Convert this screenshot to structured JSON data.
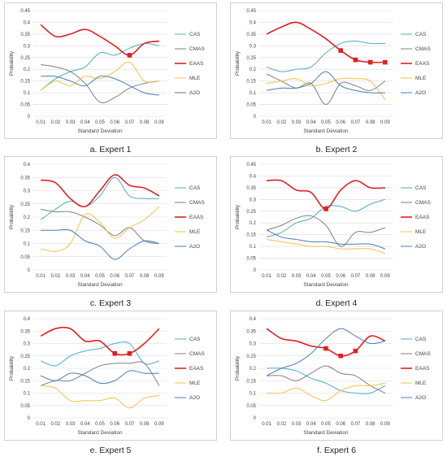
{
  "series_colors": {
    "CAS": "#4bacc6",
    "CMAS": "#7f7f7f",
    "EAAS": "#e02020",
    "MLE": "#f5c242",
    "A2O": "#4a7bb5"
  },
  "chart_data": [
    {
      "type": "line",
      "caption": "a. Expert 1",
      "title": "",
      "xlabel": "Standard Deviation",
      "ylabel": "Probability",
      "x": [
        "0.01",
        "0.02",
        "0.03",
        "0.04",
        "0.05",
        "0.06",
        "0.07",
        "0.08",
        "0.09"
      ],
      "yticks": [
        "0",
        "0.05",
        "0.1",
        "0.15",
        "0.2",
        "0.25",
        "0.3",
        "0.35",
        "0.4",
        "0.45"
      ],
      "ylim": [
        0,
        0.45
      ],
      "grid": true,
      "legend": "right",
      "markers": {
        "EAAS": [
          6
        ]
      },
      "series": [
        {
          "name": "CAS",
          "values": [
            0.11,
            0.16,
            0.19,
            0.21,
            0.27,
            0.26,
            0.29,
            0.31,
            0.3
          ]
        },
        {
          "name": "CMAS",
          "values": [
            0.22,
            0.21,
            0.19,
            0.14,
            0.06,
            0.08,
            0.12,
            0.14,
            0.15
          ]
        },
        {
          "name": "EAAS",
          "values": [
            0.39,
            0.34,
            0.35,
            0.37,
            0.34,
            0.3,
            0.26,
            0.31,
            0.32
          ]
        },
        {
          "name": "MLE",
          "values": [
            0.11,
            0.15,
            0.13,
            0.17,
            0.16,
            0.19,
            0.23,
            0.15,
            0.15
          ]
        },
        {
          "name": "A2O",
          "values": [
            0.17,
            0.17,
            0.15,
            0.13,
            0.17,
            0.16,
            0.13,
            0.1,
            0.09
          ]
        }
      ]
    },
    {
      "type": "line",
      "caption": "b. Expert 2",
      "title": "",
      "xlabel": "Standard Deviation",
      "ylabel": "Probability",
      "x": [
        "0.01",
        "0.02",
        "0.03",
        "0.04",
        "0.05",
        "0.06",
        "0.07",
        "0.08",
        "0.09"
      ],
      "yticks": [
        "0",
        "0.05",
        "0.1",
        "0.15",
        "0.2",
        "0.25",
        "0.3",
        "0.35",
        "0.4",
        "0.45"
      ],
      "ylim": [
        0,
        0.45
      ],
      "grid": true,
      "legend": "right",
      "markers": {
        "EAAS": [
          5,
          6,
          7,
          8
        ]
      },
      "series": [
        {
          "name": "CAS",
          "values": [
            0.21,
            0.19,
            0.2,
            0.21,
            0.27,
            0.31,
            0.32,
            0.31,
            0.31
          ]
        },
        {
          "name": "CMAS",
          "values": [
            0.18,
            0.15,
            0.12,
            0.14,
            0.05,
            0.14,
            0.13,
            0.11,
            0.15
          ]
        },
        {
          "name": "EAAS",
          "values": [
            0.35,
            0.38,
            0.4,
            0.37,
            0.33,
            0.28,
            0.24,
            0.23,
            0.23
          ]
        },
        {
          "name": "MLE",
          "values": [
            0.14,
            0.15,
            0.16,
            0.13,
            0.14,
            0.16,
            0.16,
            0.15,
            0.07
          ]
        },
        {
          "name": "A2O",
          "values": [
            0.11,
            0.12,
            0.12,
            0.14,
            0.19,
            0.13,
            0.11,
            0.1,
            0.1
          ]
        }
      ]
    },
    {
      "type": "line",
      "caption": "c. Expert 3",
      "title": "",
      "xlabel": "Standard Deviation",
      "ylabel": "Probability",
      "x": [
        "0.01",
        "0.02",
        "0.03",
        "0.04",
        "0.05",
        "0.06",
        "0.07",
        "0.08",
        "0.09"
      ],
      "yticks": [
        "0",
        "0.05",
        "0.1",
        "0.15",
        "0.2",
        "0.25",
        "0.3",
        "0.35",
        "0.4"
      ],
      "ylim": [
        0,
        0.4
      ],
      "grid": true,
      "legend": "right",
      "markers": {},
      "series": [
        {
          "name": "CAS",
          "values": [
            0.19,
            0.23,
            0.26,
            0.24,
            0.28,
            0.35,
            0.28,
            0.27,
            0.27
          ]
        },
        {
          "name": "CMAS",
          "values": [
            0.23,
            0.22,
            0.22,
            0.2,
            0.17,
            0.13,
            0.16,
            0.11,
            0.1
          ]
        },
        {
          "name": "EAAS",
          "values": [
            0.34,
            0.33,
            0.27,
            0.24,
            0.3,
            0.36,
            0.32,
            0.31,
            0.28
          ]
        },
        {
          "name": "MLE",
          "values": [
            0.08,
            0.07,
            0.1,
            0.21,
            0.18,
            0.12,
            0.16,
            0.19,
            0.24
          ]
        },
        {
          "name": "A2O",
          "values": [
            0.15,
            0.15,
            0.15,
            0.11,
            0.09,
            0.04,
            0.08,
            0.11,
            0.1
          ]
        }
      ]
    },
    {
      "type": "line",
      "caption": "d. Expert 4",
      "title": "",
      "xlabel": "Standard Deviation",
      "ylabel": "Probability",
      "x": [
        "0.01",
        "0.02",
        "0.03",
        "0.04",
        "0.05",
        "0.06",
        "0.07",
        "0.08",
        "0.09"
      ],
      "yticks": [
        "0",
        "0.05",
        "0.1",
        "0.15",
        "0.2",
        "0.25",
        "0.3",
        "0.35",
        "0.4",
        "0.45"
      ],
      "ylim": [
        0,
        0.45
      ],
      "grid": true,
      "legend": "right",
      "markers": {
        "EAAS": [
          4
        ]
      },
      "series": [
        {
          "name": "CAS",
          "values": [
            0.14,
            0.16,
            0.2,
            0.22,
            0.27,
            0.27,
            0.25,
            0.28,
            0.3
          ]
        },
        {
          "name": "CMAS",
          "values": [
            0.17,
            0.19,
            0.22,
            0.23,
            0.19,
            0.1,
            0.16,
            0.16,
            0.18
          ]
        },
        {
          "name": "EAAS",
          "values": [
            0.38,
            0.38,
            0.34,
            0.33,
            0.26,
            0.34,
            0.38,
            0.35,
            0.35
          ]
        },
        {
          "name": "MLE",
          "values": [
            0.13,
            0.12,
            0.11,
            0.1,
            0.1,
            0.09,
            0.09,
            0.09,
            0.07
          ]
        },
        {
          "name": "A2O",
          "values": [
            0.17,
            0.14,
            0.13,
            0.12,
            0.12,
            0.11,
            0.11,
            0.11,
            0.09
          ]
        }
      ]
    },
    {
      "type": "line",
      "caption": "e. Expert 5",
      "title": "",
      "xlabel": "Standard Deviation",
      "ylabel": "Probability",
      "x": [
        "0.01",
        "0.02",
        "0.03",
        "0.04",
        "0.05",
        "0.06",
        "0.07",
        "0.08",
        "0.09"
      ],
      "yticks": [
        "0",
        "0.05",
        "0.1",
        "0.15",
        "0.2",
        "0.25",
        "0.3",
        "0.35",
        "0.4"
      ],
      "ylim": [
        0,
        0.4
      ],
      "grid": true,
      "legend": "right",
      "markers": {
        "EAAS": [
          5,
          6
        ]
      },
      "series": [
        {
          "name": "CAS",
          "values": [
            0.23,
            0.21,
            0.25,
            0.27,
            0.28,
            0.3,
            0.3,
            0.22,
            0.23
          ]
        },
        {
          "name": "CMAS",
          "values": [
            0.13,
            0.15,
            0.15,
            0.18,
            0.21,
            0.22,
            0.22,
            0.22,
            0.13
          ]
        },
        {
          "name": "EAAS",
          "values": [
            0.33,
            0.36,
            0.36,
            0.31,
            0.31,
            0.26,
            0.26,
            0.3,
            0.36
          ]
        },
        {
          "name": "MLE",
          "values": [
            0.13,
            0.12,
            0.07,
            0.07,
            0.07,
            0.08,
            0.04,
            0.08,
            0.09
          ]
        },
        {
          "name": "A2O",
          "values": [
            0.17,
            0.15,
            0.18,
            0.17,
            0.14,
            0.15,
            0.19,
            0.18,
            0.18
          ]
        }
      ]
    },
    {
      "type": "line",
      "caption": "f. Expert 6",
      "title": "",
      "xlabel": "Standard Deviation",
      "ylabel": "Probability",
      "x": [
        "0.01",
        "0.02",
        "0.03",
        "0.04",
        "0.05",
        "0.06",
        "0.07",
        "0.08",
        "0.09"
      ],
      "yticks": [
        "0",
        "0.05",
        "0.1",
        "0.15",
        "0.2",
        "0.25",
        "0.3",
        "0.35",
        "0.4"
      ],
      "ylim": [
        0,
        0.4
      ],
      "grid": true,
      "legend": "right",
      "markers": {
        "EAAS": [
          4,
          5,
          6
        ]
      },
      "series": [
        {
          "name": "CAS",
          "values": [
            0.2,
            0.2,
            0.19,
            0.16,
            0.14,
            0.11,
            0.1,
            0.1,
            0.13
          ]
        },
        {
          "name": "CMAS",
          "values": [
            0.17,
            0.17,
            0.15,
            0.18,
            0.21,
            0.18,
            0.17,
            0.13,
            0.1
          ]
        },
        {
          "name": "EAAS",
          "values": [
            0.36,
            0.32,
            0.31,
            0.29,
            0.28,
            0.25,
            0.27,
            0.33,
            0.31
          ]
        },
        {
          "name": "MLE",
          "values": [
            0.1,
            0.1,
            0.12,
            0.09,
            0.07,
            0.11,
            0.13,
            0.13,
            0.14
          ]
        },
        {
          "name": "A2O",
          "values": [
            0.17,
            0.2,
            0.22,
            0.26,
            0.32,
            0.36,
            0.33,
            0.3,
            0.31
          ]
        }
      ]
    }
  ]
}
